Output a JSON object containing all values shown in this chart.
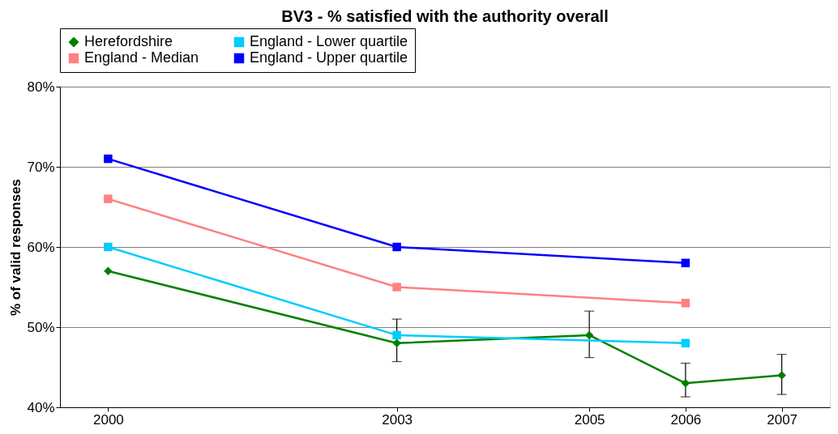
{
  "chart_data": {
    "type": "line",
    "title": "BV3 - % satisfied with the authority overall",
    "ylabel": "% of valid responses",
    "xlim": [
      1999.5,
      2007.5
    ],
    "xticks": [
      2000,
      2003,
      2005,
      2006,
      2007
    ],
    "ylim": [
      40,
      80
    ],
    "yticks": [
      {
        "value": 40,
        "label": "40%"
      },
      {
        "value": 50,
        "label": "50%"
      },
      {
        "value": 60,
        "label": "60%"
      },
      {
        "value": 70,
        "label": "70%"
      },
      {
        "value": 80,
        "label": "80%"
      }
    ],
    "grid": "y",
    "legend": "top",
    "series": [
      {
        "name": "Herefordshire",
        "color": "#008000",
        "marker": "diamond",
        "x": [
          2000,
          2003,
          2005,
          2006,
          2007
        ],
        "values": [
          57,
          48,
          49,
          43,
          44
        ],
        "errors": [
          null,
          [
            45.7,
            51
          ],
          [
            46.2,
            52
          ],
          [
            41.3,
            45.5
          ],
          [
            41.6,
            46.6
          ]
        ]
      },
      {
        "name": "England - Lower quartile",
        "color": "#00ccff",
        "marker": "square",
        "x": [
          2000,
          2003,
          2006
        ],
        "values": [
          60,
          49,
          48
        ]
      },
      {
        "name": "England - Median",
        "color": "#ff8080",
        "marker": "square",
        "x": [
          2000,
          2003,
          2006
        ],
        "values": [
          66,
          55,
          53
        ]
      },
      {
        "name": "England - Upper quartile",
        "color": "#0000ff",
        "marker": "square",
        "x": [
          2000,
          2003,
          2006
        ],
        "values": [
          71,
          60,
          58
        ]
      }
    ]
  }
}
